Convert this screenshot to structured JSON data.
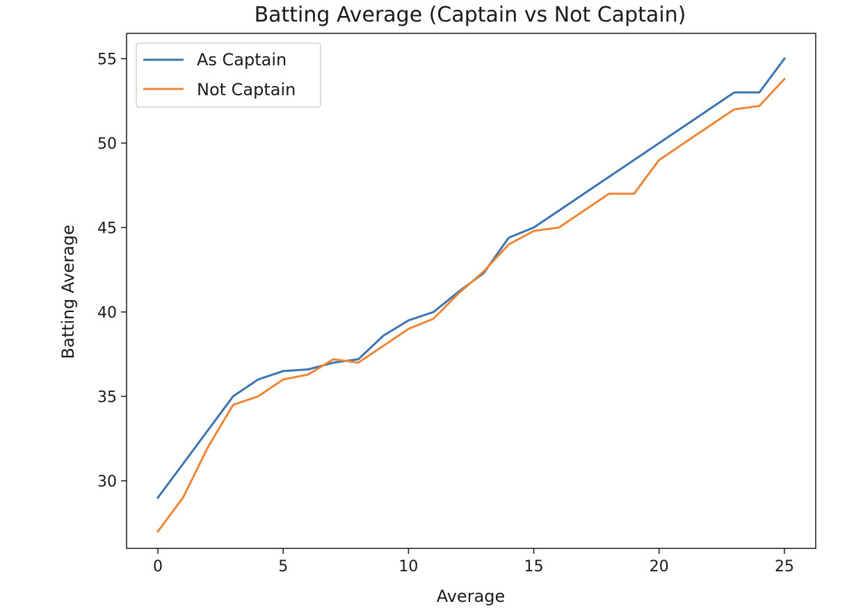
{
  "chart_data": {
    "type": "line",
    "title": "Batting Average (Captain vs Not Captain)",
    "xlabel": "Average",
    "ylabel": "Batting Average",
    "xlim": [
      -1.25,
      26.25
    ],
    "ylim": [
      26,
      56.5
    ],
    "xticks": [
      0,
      5,
      10,
      15,
      20,
      25
    ],
    "yticks": [
      30,
      35,
      40,
      45,
      50,
      55
    ],
    "grid": false,
    "legend_position": "top-left",
    "x": [
      0,
      1,
      2,
      3,
      4,
      5,
      6,
      7,
      8,
      9,
      10,
      11,
      12,
      13,
      14,
      15,
      16,
      17,
      18,
      19,
      20,
      21,
      22,
      23,
      24,
      25
    ],
    "series": [
      {
        "name": "As Captain",
        "color": "#3b75af",
        "values": [
          29.0,
          31.0,
          33.0,
          35.0,
          36.0,
          36.5,
          36.6,
          37.0,
          37.2,
          38.6,
          39.5,
          40.0,
          41.2,
          42.3,
          44.4,
          45.0,
          46.0,
          47.0,
          48.0,
          49.0,
          50.0,
          51.0,
          52.0,
          53.0,
          53.0,
          55.0
        ]
      },
      {
        "name": "Not Captain",
        "color": "#ef8636",
        "values": [
          27.0,
          29.0,
          32.0,
          34.5,
          35.0,
          36.0,
          36.3,
          37.2,
          37.0,
          38.0,
          39.0,
          39.6,
          41.1,
          42.4,
          44.0,
          44.8,
          45.0,
          46.0,
          47.0,
          47.0,
          49.0,
          50.0,
          51.0,
          52.0,
          52.2,
          53.8
        ]
      }
    ]
  }
}
